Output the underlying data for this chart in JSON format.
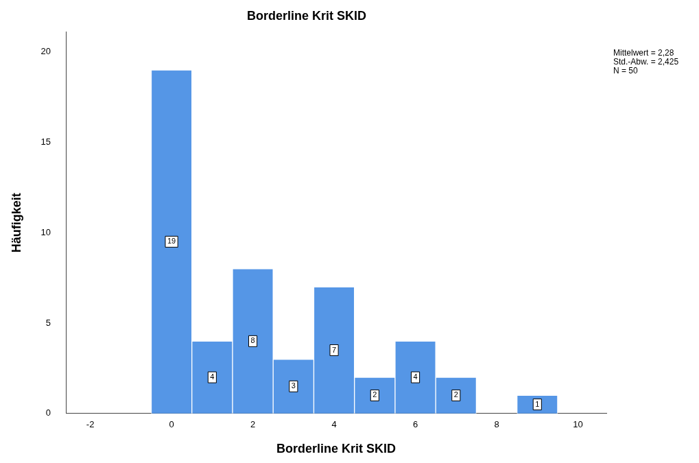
{
  "chart_data": {
    "type": "histogram",
    "title": "Borderline Krit SKID",
    "xlabel": "Borderline Krit SKID",
    "ylabel": "Häufigkeit",
    "bins": [
      -0.5,
      0.5,
      1.5,
      2.5,
      3.5,
      4.5,
      5.5,
      6.5,
      7.5,
      8.5,
      9.5
    ],
    "values": [
      19,
      4,
      8,
      3,
      7,
      2,
      4,
      2,
      0,
      1
    ],
    "value_labels": [
      "19",
      "4",
      "8",
      "3",
      "7",
      "2",
      "4",
      "2",
      null,
      "1"
    ],
    "color": "#5596e6",
    "xlim": [
      -2.6,
      10.7
    ],
    "xticks": [
      -2,
      0,
      2,
      4,
      6,
      8,
      10
    ],
    "ylim": [
      0,
      21.1
    ],
    "yticks": [
      0,
      5,
      10,
      15,
      20
    ],
    "grid": false,
    "legend": false,
    "annotations": [
      "Mittelwert = 2,28",
      "Std.-Abw. = 2,425",
      "N = 50"
    ]
  }
}
